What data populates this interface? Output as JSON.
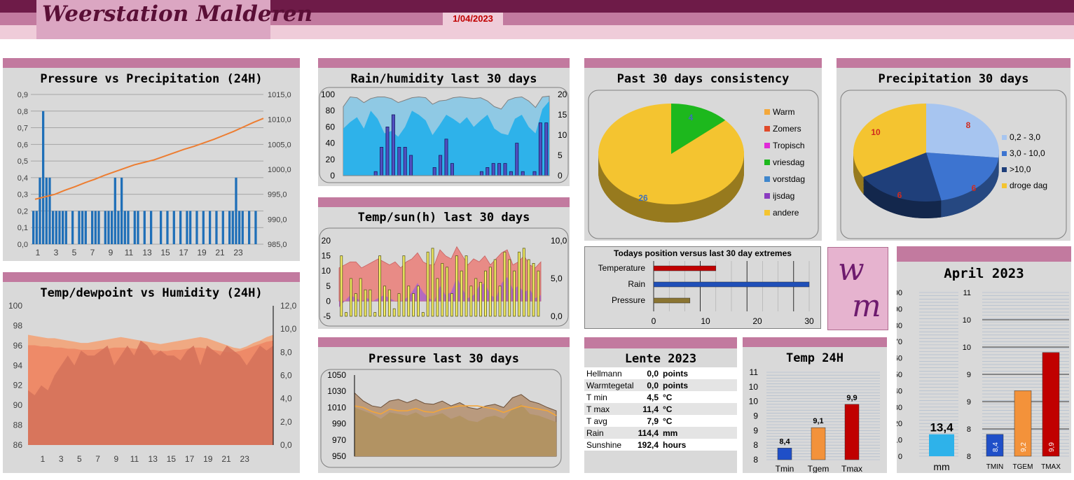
{
  "header": {
    "title": "Weerstation Malderen",
    "date": "1/04/2023"
  },
  "logo": {
    "letters": [
      "w",
      "m"
    ]
  },
  "colors": {
    "accent": "#c27a9f",
    "dark": "#6e1b48",
    "blue": "#1f6fb8",
    "orange": "#ed7d31"
  },
  "chart_data": [
    {
      "id": "pressure_precip_24h",
      "type": "bar+line",
      "title": "Pressure vs Precipitation (24H)",
      "x_ticks": [
        "1",
        "3",
        "5",
        "7",
        "9",
        "11",
        "13",
        "15",
        "17",
        "19",
        "21",
        "23"
      ],
      "y_left_ticks": [
        "0,0",
        "0,1",
        "0,2",
        "0,3",
        "0,4",
        "0,5",
        "0,6",
        "0,7",
        "0,8",
        "0,9"
      ],
      "y_right_ticks": [
        "985,0",
        "990,0",
        "995,0",
        "1000,0",
        "1005,0",
        "1010,0",
        "1015,0"
      ],
      "ylim_left": [
        0,
        0.9
      ],
      "ylim_right": [
        985,
        1015
      ],
      "precip_series": [
        0.2,
        0.2,
        0.4,
        0.8,
        0.4,
        0.4,
        0.2,
        0.2,
        0.2,
        0.2,
        0.2,
        0,
        0.2,
        0,
        0.2,
        0.2,
        0.2,
        0,
        0.2,
        0.2,
        0.2,
        0,
        0.2,
        0.2,
        0.2,
        0.4,
        0.2,
        0.4,
        0.2,
        0.2,
        0,
        0.2,
        0.2,
        0,
        0.2,
        0,
        0.2,
        0,
        0,
        0.2,
        0,
        0.2,
        0,
        0.2,
        0,
        0.2,
        0,
        0.2,
        0.2,
        0,
        0.2,
        0,
        0.2,
        0,
        0.2,
        0,
        0.2,
        0,
        0.2,
        0,
        0.2,
        0.2,
        0.4,
        0.2,
        0.2,
        0,
        0.2,
        0,
        0.2
      ],
      "pressure_line": [
        994,
        994.5,
        995,
        995.8,
        996.5,
        997.3,
        998,
        998.8,
        999.5,
        1000.2,
        1000.9,
        1001.4,
        1001.9,
        1002.6,
        1003.3,
        1004,
        1004.6,
        1005.3,
        1006,
        1006.8,
        1007.6,
        1008.5,
        1009.4,
        1010.2
      ]
    },
    {
      "id": "temp_dew_hum_24h",
      "type": "area",
      "title": "Temp/dewpoint vs Humidity (24H)",
      "x_ticks": [
        "1",
        "3",
        "5",
        "7",
        "9",
        "11",
        "13",
        "15",
        "17",
        "19",
        "21",
        "23"
      ],
      "y_left_ticks": [
        "86",
        "88",
        "90",
        "92",
        "94",
        "96",
        "98",
        "100"
      ],
      "y_right_ticks": [
        "0,0",
        "2,0",
        "4,0",
        "6,0",
        "8,0",
        "10,0",
        "12,0"
      ],
      "ylim_left": [
        86,
        100
      ],
      "ylim_right": [
        0,
        12
      ],
      "humidity": [
        91.5,
        91,
        92,
        91.5,
        93,
        94,
        95,
        94,
        95.5,
        95,
        95,
        95.5,
        96,
        94,
        95,
        96,
        95,
        96.5,
        96,
        95,
        95.5,
        95,
        95,
        94.5,
        95.5,
        96,
        94,
        96,
        95.5,
        95,
        96,
        95.5,
        95,
        94,
        95,
        96,
        95.5,
        96
      ],
      "temperature": [
        9.5,
        9.4,
        9.3,
        9.2,
        9.2,
        9.1,
        9.0,
        8.9,
        8.8,
        8.8,
        8.9,
        9.0,
        9.1,
        9.2,
        9.3,
        9.2,
        9.1,
        9.0,
        8.9,
        8.8,
        8.7,
        8.8,
        8.9,
        9.0,
        9.1,
        9.2,
        9.3,
        9.2,
        9.0,
        8.8,
        8.6,
        8.4,
        8.3,
        8.5,
        8.8,
        9.0,
        9.3,
        9.5
      ],
      "dewpoint": [
        8.6,
        8.6,
        8.5,
        8.5,
        8.4,
        8.4,
        8.3,
        8.3,
        8.2,
        8.2,
        8.2,
        8.3,
        8.3,
        8.4,
        8.4,
        8.4,
        8.3,
        8.3,
        8.2,
        8.2,
        8.1,
        8.1,
        8.2,
        8.2,
        8.3,
        8.4,
        8.4,
        8.3,
        8.2,
        8.1,
        8.0,
        8.0,
        8.1,
        8.3,
        8.5,
        8.7,
        8.9,
        9.0
      ]
    },
    {
      "id": "rain_hum_30d",
      "type": "bar+area",
      "title": "Rain/humidity last 30 days",
      "y_left_ticks": [
        "0",
        "20",
        "40",
        "60",
        "80",
        "100"
      ],
      "y_right_ticks": [
        "0",
        "5",
        "10",
        "15",
        "20"
      ],
      "ylim_left": [
        0,
        100
      ],
      "ylim_right": [
        0,
        20
      ],
      "humidity_max": [
        85,
        97,
        96,
        90,
        95,
        97,
        97,
        95,
        90,
        93,
        96,
        97,
        96,
        88,
        92,
        93,
        96,
        97,
        96,
        95,
        96,
        92,
        85,
        82,
        93,
        96,
        97,
        92,
        84,
        97,
        98
      ],
      "humidity_min": [
        58,
        66,
        72,
        58,
        80,
        70,
        52,
        55,
        48,
        60,
        80,
        75,
        68,
        50,
        62,
        75,
        70,
        64,
        72,
        60,
        68,
        75,
        58,
        52,
        50,
        70,
        75,
        60,
        52,
        82,
        92
      ],
      "rain": [
        0,
        0,
        0,
        0,
        0,
        1,
        7,
        12,
        15,
        7,
        7,
        5,
        0,
        0,
        0,
        2,
        5,
        9,
        3,
        0,
        0,
        0,
        0,
        1,
        2,
        3,
        3,
        3,
        1,
        8,
        1,
        0,
        1,
        13,
        13
      ]
    },
    {
      "id": "temp_sun_30d",
      "type": "bar+area",
      "title": "Temp/sun(h) last 30 days",
      "y_left_ticks": [
        "-5",
        "0",
        "5",
        "10",
        "15",
        "20"
      ],
      "y_right_ticks": [
        "0,0",
        "5,0",
        "10,0"
      ],
      "ylim_left": [
        -5,
        20
      ],
      "ylim_right": [
        0,
        10
      ],
      "tmax": [
        11,
        12,
        13,
        13,
        11,
        12,
        13,
        14,
        13,
        12,
        13,
        11,
        13,
        14,
        16,
        13,
        12,
        12,
        17,
        15,
        14,
        18,
        15,
        12,
        14,
        13,
        15,
        12,
        14,
        16,
        17,
        12,
        13,
        15,
        12,
        11,
        13
      ],
      "tmin": [
        -2,
        0,
        2,
        1,
        0,
        1,
        0,
        1,
        2,
        1,
        0,
        0,
        1,
        3,
        6,
        3,
        1,
        0,
        5,
        2,
        3,
        8,
        4,
        1,
        2,
        5,
        6,
        2,
        1,
        6,
        8,
        4,
        5,
        3,
        4,
        1,
        2
      ],
      "sun": [
        8,
        0.5,
        5,
        3,
        5,
        3.5,
        3.5,
        0.5,
        8,
        4,
        3.5,
        1,
        3,
        8,
        4,
        3,
        4,
        0.5,
        8.5,
        9,
        5,
        7,
        6.5,
        3,
        8,
        6,
        8,
        4,
        5,
        4.5,
        6,
        6.5,
        7.5,
        4,
        8.5,
        7.5,
        6,
        8.5,
        9,
        7.5,
        7,
        6
      ]
    },
    {
      "id": "pressure_30d",
      "type": "area",
      "title": "Pressure last 30 days",
      "y_ticks": [
        "950",
        "970",
        "990",
        "1010",
        "1030",
        "1050"
      ],
      "ylim": [
        950,
        1050
      ],
      "max": [
        1028,
        1018,
        1012,
        1010,
        1018,
        1020,
        1016,
        1020,
        1015,
        1014,
        1018,
        1012,
        1016,
        1010,
        1008,
        1012,
        1014,
        1010,
        1022,
        1026,
        1018,
        1015,
        1010,
        1006
      ],
      "min": [
        1010,
        1006,
        1002,
        996,
        1004,
        1002,
        1000,
        1004,
        998,
        1000,
        1003,
        996,
        1000,
        994,
        992,
        998,
        1000,
        996,
        1008,
        1014,
        1002,
        1000,
        996,
        992
      ],
      "avg": [
        1012,
        1010,
        1005,
        1002,
        1008,
        1006,
        1006,
        1009,
        1005,
        1004,
        1008,
        1010,
        1012,
        1012,
        1012,
        1010,
        1008,
        1004,
        1008,
        1012,
        1010,
        1008,
        1006,
        1000
      ]
    },
    {
      "id": "consistency_30d",
      "type": "pie",
      "title": "Past 30 days consistency",
      "legend": [
        "Warm",
        "Zomers",
        "Tropisch",
        "vriesdag",
        "vorstdag",
        "ijsdag",
        "andere"
      ],
      "legend_colors": [
        "#f4a83a",
        "#e04a2a",
        "#e02ad8",
        "#1db81d",
        "#3f86cc",
        "#8a3cc0",
        "#f4c430"
      ],
      "slices": [
        {
          "name": "vriesdag",
          "value": 4,
          "color": "#1db81d"
        },
        {
          "name": "andere",
          "value": 26,
          "color": "#f4c430"
        }
      ],
      "labels": [
        "4",
        "26"
      ]
    },
    {
      "id": "precip_30d",
      "type": "pie",
      "title": "Precipitation 30 days",
      "legend": [
        "0,2 - 3,0",
        "3,0 - 10,0",
        ">10,0",
        "droge dag"
      ],
      "legend_colors": [
        "#a7c5f0",
        "#3d74d0",
        "#1f3f7a",
        "#f4c430"
      ],
      "slices": [
        {
          "name": "0,2 - 3,0",
          "value": 8,
          "color": "#a7c5f0"
        },
        {
          "name": "3,0 - 10,0",
          "value": 6,
          "color": "#3d74d0"
        },
        {
          "name": ">10,0",
          "value": 6,
          "color": "#1f3f7a"
        },
        {
          "name": "droge dag",
          "value": 10,
          "color": "#f4c430"
        }
      ],
      "labels": [
        "8",
        "6",
        "6",
        "10"
      ]
    },
    {
      "id": "today_vs_extremes",
      "type": "bar",
      "title": "Todays position versus last 30 day extremes",
      "categories": [
        "Temperature",
        "Rain",
        "Pressure"
      ],
      "values": [
        12,
        30,
        7
      ],
      "colors": [
        "#c00000",
        "#1f4fb8",
        "#8b7532"
      ],
      "x_ticks": [
        "0",
        "10",
        "20",
        "30"
      ],
      "xlim": [
        0,
        30
      ]
    },
    {
      "id": "temp_24h",
      "type": "bar",
      "title": "Temp 24H",
      "categories": [
        "Tmin",
        "Tgem",
        "Tmax"
      ],
      "values": [
        8.4,
        9.1,
        9.9
      ],
      "labels": [
        "8,4",
        "9,1",
        "9,9"
      ],
      "colors": [
        "#1f4fc8",
        "#f3923a",
        "#c00000"
      ],
      "y_ticks": [
        "8",
        "8",
        "9",
        "9",
        "10",
        "10",
        "11"
      ],
      "ylim": [
        8,
        11
      ]
    },
    {
      "id": "april_2023",
      "type": "bar",
      "title": "April 2023",
      "rain_value": 13.4,
      "rain_label": "13,4",
      "rain_unit": "mm",
      "left_ticks": [
        "0",
        "10",
        "20",
        "30",
        "40",
        "50",
        "60",
        "70",
        "80",
        "90",
        "100"
      ],
      "right_ticks": [
        "8",
        "8",
        "9",
        "9",
        "10",
        "10",
        "11"
      ],
      "categories": [
        "TMIN",
        "TGEM",
        "TMAX"
      ],
      "values": [
        8.4,
        9.2,
        9.9
      ],
      "labels": [
        "8,4",
        "9,2",
        "9,9"
      ],
      "colors": [
        "#1f4fc8",
        "#f3923a",
        "#c00000"
      ]
    }
  ],
  "lente": {
    "title": "Lente 2023",
    "rows": [
      {
        "label": "Hellmann",
        "value": "0,0",
        "unit": "points"
      },
      {
        "label": "Warmtegetal",
        "value": "0,0",
        "unit": "points"
      },
      {
        "label": "T min",
        "value": "4,5",
        "unit": "°C"
      },
      {
        "label": "T max",
        "value": "11,4",
        "unit": "°C"
      },
      {
        "label": "T avg",
        "value": "7,9",
        "unit": "°C"
      },
      {
        "label": "Rain",
        "value": "114,4",
        "unit": "mm"
      },
      {
        "label": "Sunshine",
        "value": "192,4",
        "unit": "hours"
      }
    ]
  }
}
